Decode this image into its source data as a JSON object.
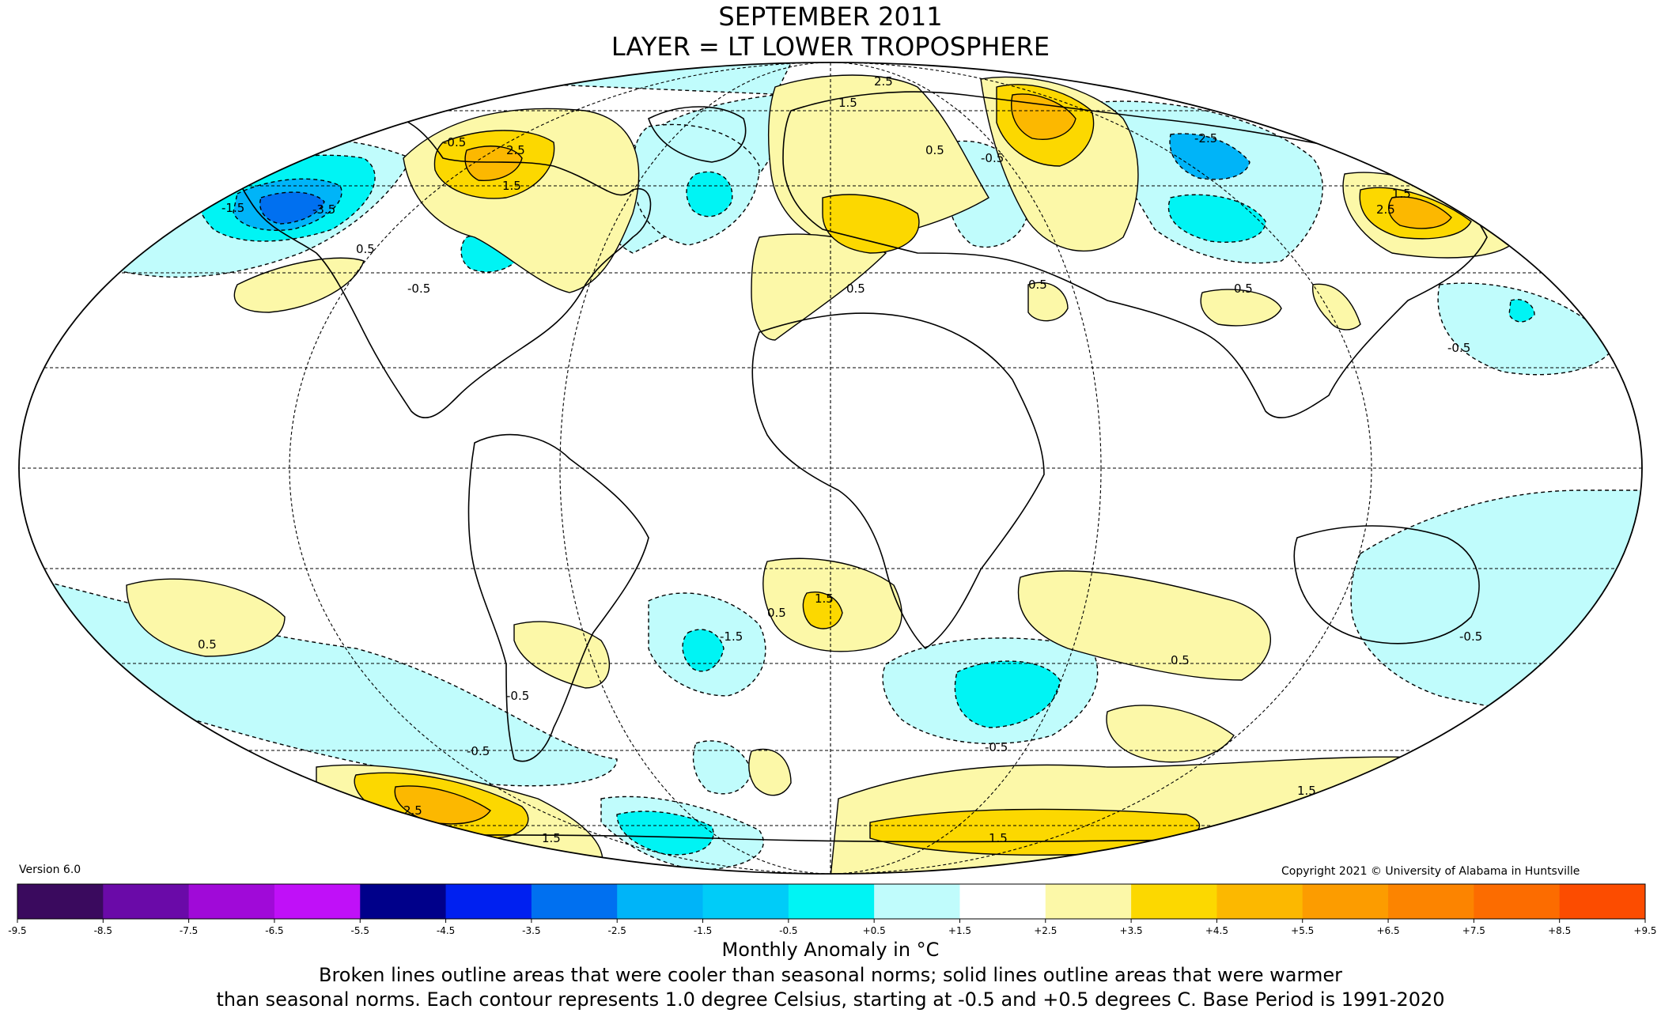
{
  "title": {
    "line1": "SEPTEMBER 2011",
    "line2": "LAYER = LT LOWER TROPOSPHERE"
  },
  "version": "Version 6.0",
  "copyright": "Copyright 2021 © University of Alabama in Huntsville",
  "colorbar": {
    "ticks": [
      "-9.5",
      "-8.5",
      "-7.5",
      "-6.5",
      "-5.5",
      "-4.5",
      "-3.5",
      "-2.5",
      "-1.5",
      "-0.5",
      "+0.5",
      "+1.5",
      "+2.5",
      "+3.5",
      "+4.5",
      "+5.5",
      "+6.5",
      "+7.5",
      "+8.5",
      "+9.5"
    ],
    "colors": [
      "#3a0a5e",
      "#6a0aa8",
      "#a00ad8",
      "#c010f8",
      "#00008a",
      "#0020f0",
      "#0070f0",
      "#00b4f8",
      "#00ccf8",
      "#00f4f4",
      "#c0fcfc",
      "#ffffff",
      "#fcf8a8",
      "#fcd800",
      "#fcb800",
      "#fc9c00",
      "#fc8400",
      "#fc6c00",
      "#fc4c00",
      "#e00000",
      "#c00000"
    ],
    "label": "Monthly Anomaly in °C"
  },
  "caption": {
    "line1": "Broken lines outline areas that were cooler than seasonal norms; solid lines outline areas that were warmer",
    "line2": "than seasonal norms. Each contour represents 1.0 degree Celsius, starting at -0.5 and +0.5 degrees C. Base Period is 1991-2020"
  },
  "map": {
    "projection": "Mollweide",
    "colors": {
      "cool_light": "#c0fcfc",
      "cool_mid": "#00f4f4",
      "cool_strong": "#00b4f8",
      "cool_deep": "#0070f0",
      "warm_light": "#fcf8a8",
      "warm_mid": "#fcd800",
      "warm_strong": "#fcb800"
    },
    "contour_labels": [
      "-0.5",
      "-1.5",
      "-2.5",
      "-3.5",
      "0.5",
      "1.5",
      "2.5"
    ]
  }
}
